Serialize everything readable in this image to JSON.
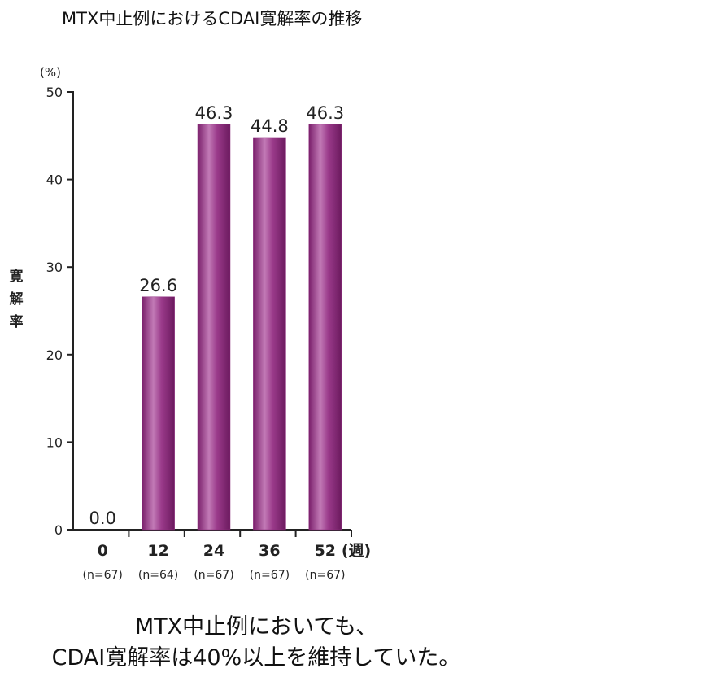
{
  "title": "MTX中止例におけるCDAI寛解率の推移",
  "chart_data": {
    "type": "bar",
    "ylabel": "寛解率",
    "y_unit_label": "(%)",
    "x_unit_label": "(週)",
    "ylim": [
      0,
      50
    ],
    "yticks": [
      0,
      10,
      20,
      30,
      40,
      50
    ],
    "categories": [
      "0",
      "12",
      "24",
      "36",
      "52"
    ],
    "n_labels": [
      "(n=67)",
      "(n=64)",
      "(n=67)",
      "(n=67)",
      "(n=67)"
    ],
    "values": [
      0.0,
      26.6,
      46.3,
      44.8,
      46.3
    ],
    "value_labels": [
      "0.0",
      "26.6",
      "46.3",
      "44.8",
      "46.3"
    ],
    "bar_color": "#8e2a7e",
    "grid": false
  },
  "caption": {
    "line1": "MTX中止例においても、",
    "line2": "CDAI寛解率は40%以上を維持していた。"
  }
}
